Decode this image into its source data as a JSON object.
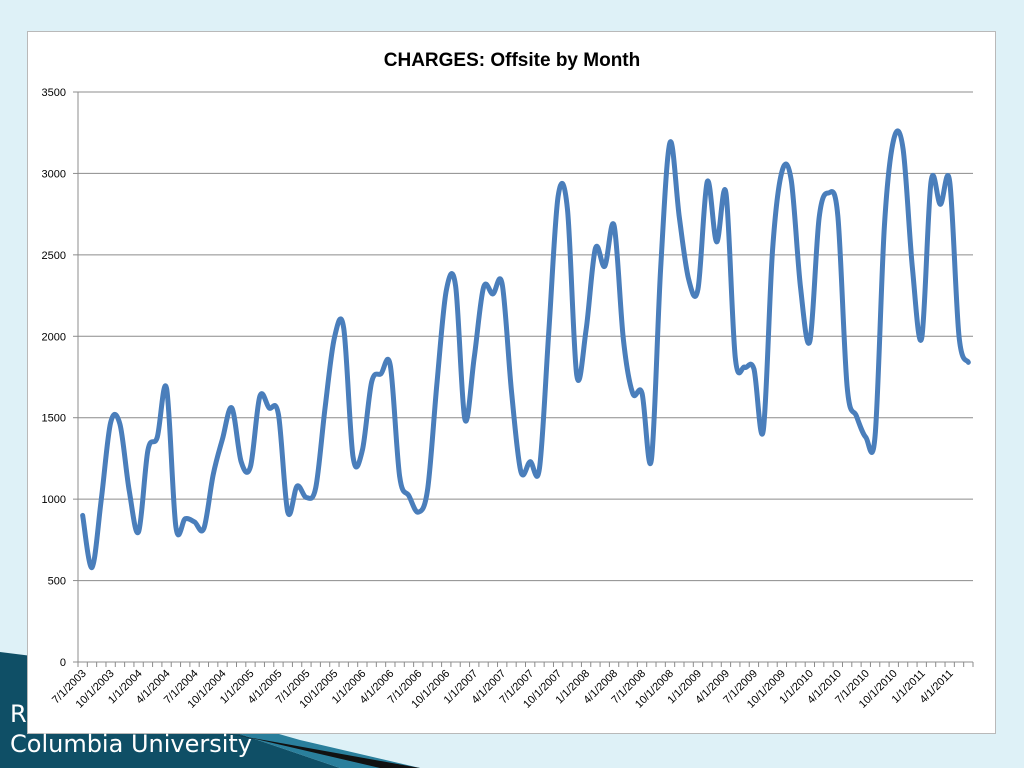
{
  "slide": {
    "footer_lines": [
      "R",
      "Columbia University"
    ],
    "colors": {
      "background": "#def1f7",
      "accent_dark": "#0f4f66",
      "accent_mid": "#2a7f9c",
      "black_band": "#111111"
    }
  },
  "chart_data": {
    "type": "line",
    "title": "CHARGES: Offsite by Month",
    "xlabel": "",
    "ylabel": "",
    "ylim": [
      0,
      3500
    ],
    "y_ticks": [
      0,
      500,
      1000,
      1500,
      2000,
      2500,
      3000,
      3500
    ],
    "x_tick_labels": [
      "7/1/2003",
      "10/1/2003",
      "1/1/2004",
      "4/1/2004",
      "7/1/2004",
      "10/1/2004",
      "1/1/2005",
      "4/1/2005",
      "7/1/2005",
      "10/1/2005",
      "1/1/2006",
      "4/1/2006",
      "7/1/2006",
      "10/1/2006",
      "1/1/2007",
      "4/1/2007",
      "7/1/2007",
      "10/1/2007",
      "1/1/2008",
      "4/1/2008",
      "7/1/2008",
      "10/1/2008",
      "1/1/2009",
      "4/1/2009",
      "7/1/2009",
      "10/1/2009",
      "1/1/2010",
      "4/1/2010",
      "7/1/2010",
      "10/1/2010",
      "1/1/2011",
      "4/1/2011"
    ],
    "grid": true,
    "legend": "none",
    "series": [
      {
        "color": "#4a7ebb",
        "x_start": "7/1/2003",
        "frequency": "monthly",
        "values": [
          900,
          580,
          1000,
          1470,
          1460,
          1050,
          800,
          1300,
          1380,
          1680,
          830,
          880,
          860,
          820,
          1150,
          1370,
          1560,
          1230,
          1200,
          1630,
          1560,
          1520,
          920,
          1080,
          1010,
          1070,
          1560,
          1990,
          2050,
          1260,
          1300,
          1720,
          1770,
          1820,
          1140,
          1020,
          920,
          1060,
          1710,
          2280,
          2310,
          1490,
          1870,
          2300,
          2260,
          2320,
          1660,
          1170,
          1230,
          1190,
          2030,
          2860,
          2780,
          1760,
          2040,
          2540,
          2430,
          2680,
          1980,
          1650,
          1650,
          1240,
          2420,
          3190,
          2730,
          2350,
          2290,
          2950,
          2580,
          2880,
          1870,
          1810,
          1800,
          1420,
          2530,
          3010,
          2960,
          2300,
          1970,
          2730,
          2880,
          2740,
          1690,
          1510,
          1380,
          1390,
          2680,
          3210,
          3150,
          2420,
          1990,
          2950,
          2810,
          2950,
          2000,
          1840
        ]
      }
    ]
  }
}
